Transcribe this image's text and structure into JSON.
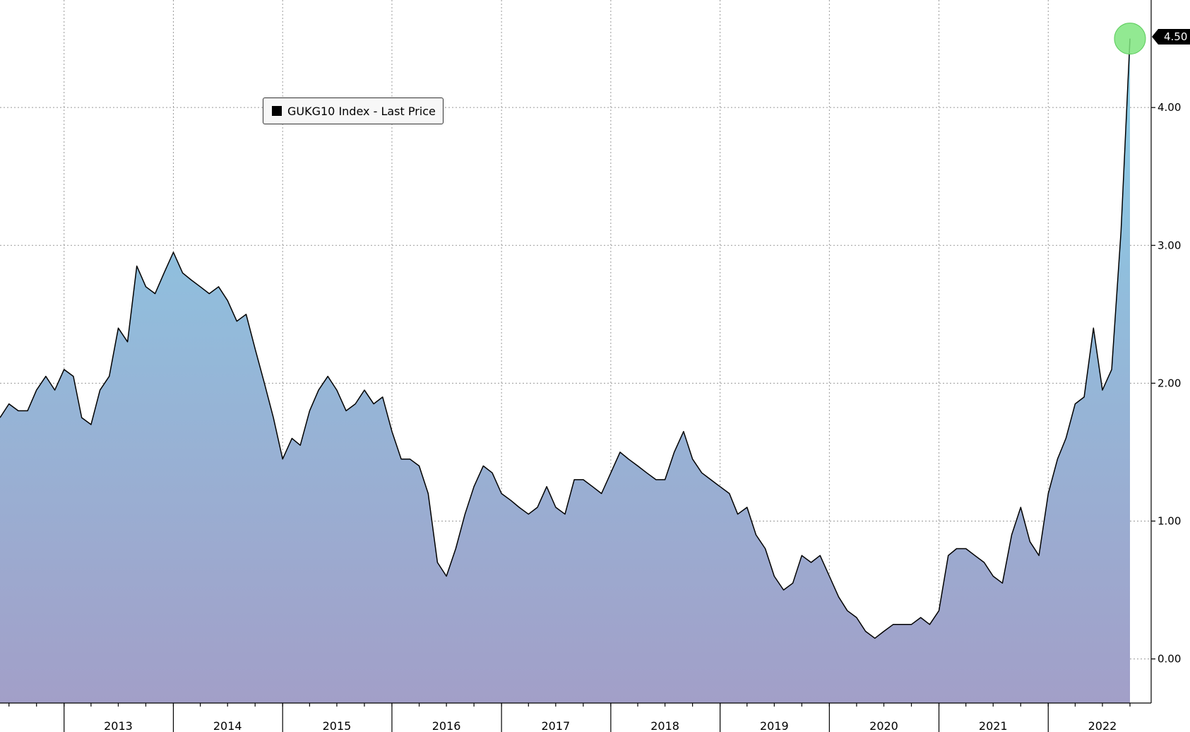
{
  "chart_data": {
    "type": "area",
    "series": [
      {
        "name": "GUKG10 Index - Last Price",
        "x": [
          "2012-06",
          "2012-07",
          "2012-08",
          "2012-09",
          "2012-10",
          "2012-11",
          "2012-12",
          "2013-01",
          "2013-02",
          "2013-03",
          "2013-04",
          "2013-05",
          "2013-06",
          "2013-07",
          "2013-08",
          "2013-09",
          "2013-10",
          "2013-11",
          "2013-12",
          "2014-01",
          "2014-02",
          "2014-03",
          "2014-04",
          "2014-05",
          "2014-06",
          "2014-07",
          "2014-08",
          "2014-09",
          "2014-10",
          "2014-11",
          "2014-12",
          "2015-01",
          "2015-02",
          "2015-03",
          "2015-04",
          "2015-05",
          "2015-06",
          "2015-07",
          "2015-08",
          "2015-09",
          "2015-10",
          "2015-11",
          "2015-12",
          "2016-01",
          "2016-02",
          "2016-03",
          "2016-04",
          "2016-05",
          "2016-06",
          "2016-07",
          "2016-08",
          "2016-09",
          "2016-10",
          "2016-11",
          "2016-12",
          "2017-01",
          "2017-02",
          "2017-03",
          "2017-04",
          "2017-05",
          "2017-06",
          "2017-07",
          "2017-08",
          "2017-09",
          "2017-10",
          "2017-11",
          "2017-12",
          "2018-01",
          "2018-02",
          "2018-03",
          "2018-04",
          "2018-05",
          "2018-06",
          "2018-07",
          "2018-08",
          "2018-09",
          "2018-10",
          "2018-11",
          "2018-12",
          "2019-01",
          "2019-02",
          "2019-03",
          "2019-04",
          "2019-05",
          "2019-06",
          "2019-07",
          "2019-08",
          "2019-09",
          "2019-10",
          "2019-11",
          "2019-12",
          "2020-01",
          "2020-02",
          "2020-03",
          "2020-04",
          "2020-05",
          "2020-06",
          "2020-07",
          "2020-08",
          "2020-09",
          "2020-10",
          "2020-11",
          "2020-12",
          "2021-01",
          "2021-02",
          "2021-03",
          "2021-04",
          "2021-05",
          "2021-06",
          "2021-07",
          "2021-08",
          "2021-09",
          "2021-10",
          "2021-11",
          "2021-12",
          "2022-01",
          "2022-02",
          "2022-03",
          "2022-04",
          "2022-05",
          "2022-06",
          "2022-07",
          "2022-08",
          "2022-09",
          "2022-10"
        ],
        "values": [
          1.75,
          1.85,
          1.8,
          1.8,
          1.95,
          2.05,
          1.95,
          2.1,
          2.05,
          1.75,
          1.7,
          1.95,
          2.05,
          2.4,
          2.3,
          2.85,
          2.7,
          2.65,
          2.8,
          2.95,
          2.8,
          2.75,
          2.7,
          2.65,
          2.7,
          2.6,
          2.45,
          2.5,
          2.25,
          2.0,
          1.75,
          1.45,
          1.6,
          1.55,
          1.8,
          1.95,
          2.05,
          1.95,
          1.8,
          1.85,
          1.95,
          1.85,
          1.9,
          1.65,
          1.45,
          1.45,
          1.4,
          1.2,
          0.7,
          0.6,
          0.8,
          1.05,
          1.25,
          1.4,
          1.35,
          1.2,
          1.15,
          1.1,
          1.05,
          1.1,
          1.25,
          1.1,
          1.05,
          1.3,
          1.3,
          1.25,
          1.2,
          1.35,
          1.5,
          1.45,
          1.4,
          1.35,
          1.3,
          1.3,
          1.5,
          1.65,
          1.45,
          1.35,
          1.3,
          1.25,
          1.2,
          1.05,
          1.1,
          0.9,
          0.8,
          0.6,
          0.5,
          0.55,
          0.75,
          0.7,
          0.75,
          0.6,
          0.45,
          0.35,
          0.3,
          0.2,
          0.15,
          0.2,
          0.25,
          0.25,
          0.25,
          0.3,
          0.25,
          0.35,
          0.75,
          0.8,
          0.8,
          0.75,
          0.7,
          0.6,
          0.55,
          0.9,
          1.1,
          0.85,
          0.75,
          1.2,
          1.45,
          1.6,
          1.85,
          1.9,
          2.4,
          1.95,
          2.1,
          3.1,
          4.5
        ]
      }
    ],
    "xlabel": "",
    "ylabel": "",
    "ylim": [
      -0.32,
      4.78
    ],
    "y_ticks": [
      0.0,
      1.0,
      2.0,
      3.0,
      4.0
    ],
    "y_tick_labels": [
      "0.00",
      "1.00",
      "2.00",
      "3.00",
      "4.00"
    ],
    "x_year_labels": [
      "2013",
      "2014",
      "2015",
      "2016",
      "2017",
      "2018",
      "2019",
      "2020",
      "2021",
      "2022"
    ],
    "last_value_label": "4.50",
    "axis_side": "right",
    "grid": true,
    "legend_placement": "top-left",
    "colors": {
      "fill_top": "#87cfe8",
      "fill_bottom": "#a29fc8",
      "line": "#000000",
      "marker": "#7fe57f"
    }
  }
}
